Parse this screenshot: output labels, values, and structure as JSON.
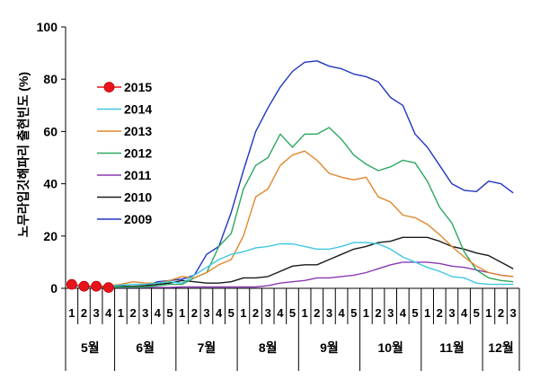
{
  "chart_data": {
    "type": "line",
    "title": "",
    "ylabel": "노무라입깃해파리 출현빈도 (%)",
    "xlabel": "",
    "ylim": [
      0,
      100
    ],
    "yticks": [
      0,
      20,
      40,
      60,
      80,
      100
    ],
    "x_week_labels": [
      "1",
      "2",
      "3",
      "4",
      "1",
      "2",
      "3",
      "4",
      "5",
      "1",
      "2",
      "3",
      "4",
      "5",
      "1",
      "2",
      "3",
      "4",
      "5",
      "1",
      "2",
      "3",
      "4",
      "5",
      "1",
      "2",
      "3",
      "4",
      "5",
      "1",
      "2",
      "3",
      "4",
      "5",
      "1",
      "2",
      "3"
    ],
    "months": [
      {
        "label": "5월",
        "start": 0,
        "end": 4
      },
      {
        "label": "6월",
        "start": 4,
        "end": 9
      },
      {
        "label": "7월",
        "start": 9,
        "end": 14
      },
      {
        "label": "8월",
        "start": 14,
        "end": 19
      },
      {
        "label": "9월",
        "start": 19,
        "end": 24
      },
      {
        "label": "10월",
        "start": 24,
        "end": 29
      },
      {
        "label": "11월",
        "start": 29,
        "end": 34
      },
      {
        "label": "12월",
        "start": 34,
        "end": 37
      }
    ],
    "series": [
      {
        "name": "2015",
        "color": "#e8141c",
        "marker": "circle",
        "values": [
          1.5,
          0.8,
          0.8,
          0.3
        ]
      },
      {
        "name": "2014",
        "color": "#3ec8e0",
        "values": [
          0.5,
          0.5,
          0.5,
          0.8,
          1.2,
          1.5,
          1.5,
          2,
          2.5,
          2,
          5,
          8,
          11,
          13,
          14,
          15.5,
          16,
          17,
          17,
          16,
          15,
          15,
          16,
          17.5,
          17.5,
          17,
          15,
          12,
          10,
          8,
          6.5,
          4.5,
          4,
          2,
          1.5,
          1.5,
          1.5
        ]
      },
      {
        "name": "2013",
        "color": "#e0882c",
        "values": [
          0.5,
          0.5,
          0.8,
          1,
          1.5,
          2.5,
          2,
          2,
          3,
          4.5,
          4,
          6,
          9,
          11,
          20,
          35,
          38,
          47,
          51,
          52.5,
          49,
          44,
          42.5,
          41.5,
          42.5,
          35,
          33,
          28,
          27,
          24.5,
          20.5,
          16,
          12,
          8.5,
          6,
          5,
          4.5
        ]
      },
      {
        "name": "2012",
        "color": "#2da860",
        "values": [
          0.3,
          0.3,
          0.3,
          0.3,
          0.5,
          0.5,
          0.5,
          1,
          1.5,
          1.5,
          4,
          6,
          16,
          21,
          38,
          47,
          50,
          59,
          54,
          59,
          59,
          61.5,
          57,
          51,
          47.5,
          45,
          46.5,
          49,
          48,
          41,
          31,
          25,
          14,
          7,
          4,
          3,
          2.5
        ]
      },
      {
        "name": "2011",
        "color": "#8a3ab0",
        "values": [
          0.3,
          0.3,
          0.3,
          0.3,
          0.3,
          0.3,
          0.3,
          0.3,
          0.3,
          0.5,
          0.5,
          0.5,
          0.5,
          0.5,
          0.5,
          0.5,
          1,
          2,
          2.5,
          3,
          4,
          4,
          4.5,
          5,
          6,
          7.5,
          9,
          10,
          10,
          10,
          9.5,
          8.5,
          8,
          7,
          6,
          5,
          4.5
        ]
      },
      {
        "name": "2010",
        "color": "#1a1a1a",
        "values": [
          0.3,
          0.3,
          0.5,
          0.5,
          0.8,
          0.8,
          1,
          1.5,
          2,
          3,
          2.5,
          2,
          2,
          2.5,
          4,
          4,
          4.5,
          6.5,
          8.5,
          9,
          9,
          11,
          13,
          15,
          16,
          17.5,
          18,
          19.5,
          19.5,
          19.5,
          18,
          16,
          15,
          13.5,
          12.5,
          10,
          7.5
        ]
      },
      {
        "name": "2009",
        "color": "#2036c0",
        "values": [
          0.3,
          0.3,
          0.3,
          0.5,
          0.5,
          0.5,
          1,
          2.5,
          3,
          3.5,
          5,
          13,
          16,
          29,
          45,
          60,
          69,
          77,
          83,
          86.5,
          87,
          85,
          84,
          82,
          81,
          79,
          73,
          70,
          59,
          54,
          47,
          40,
          37.5,
          37,
          41,
          40,
          36.5
        ]
      }
    ]
  }
}
